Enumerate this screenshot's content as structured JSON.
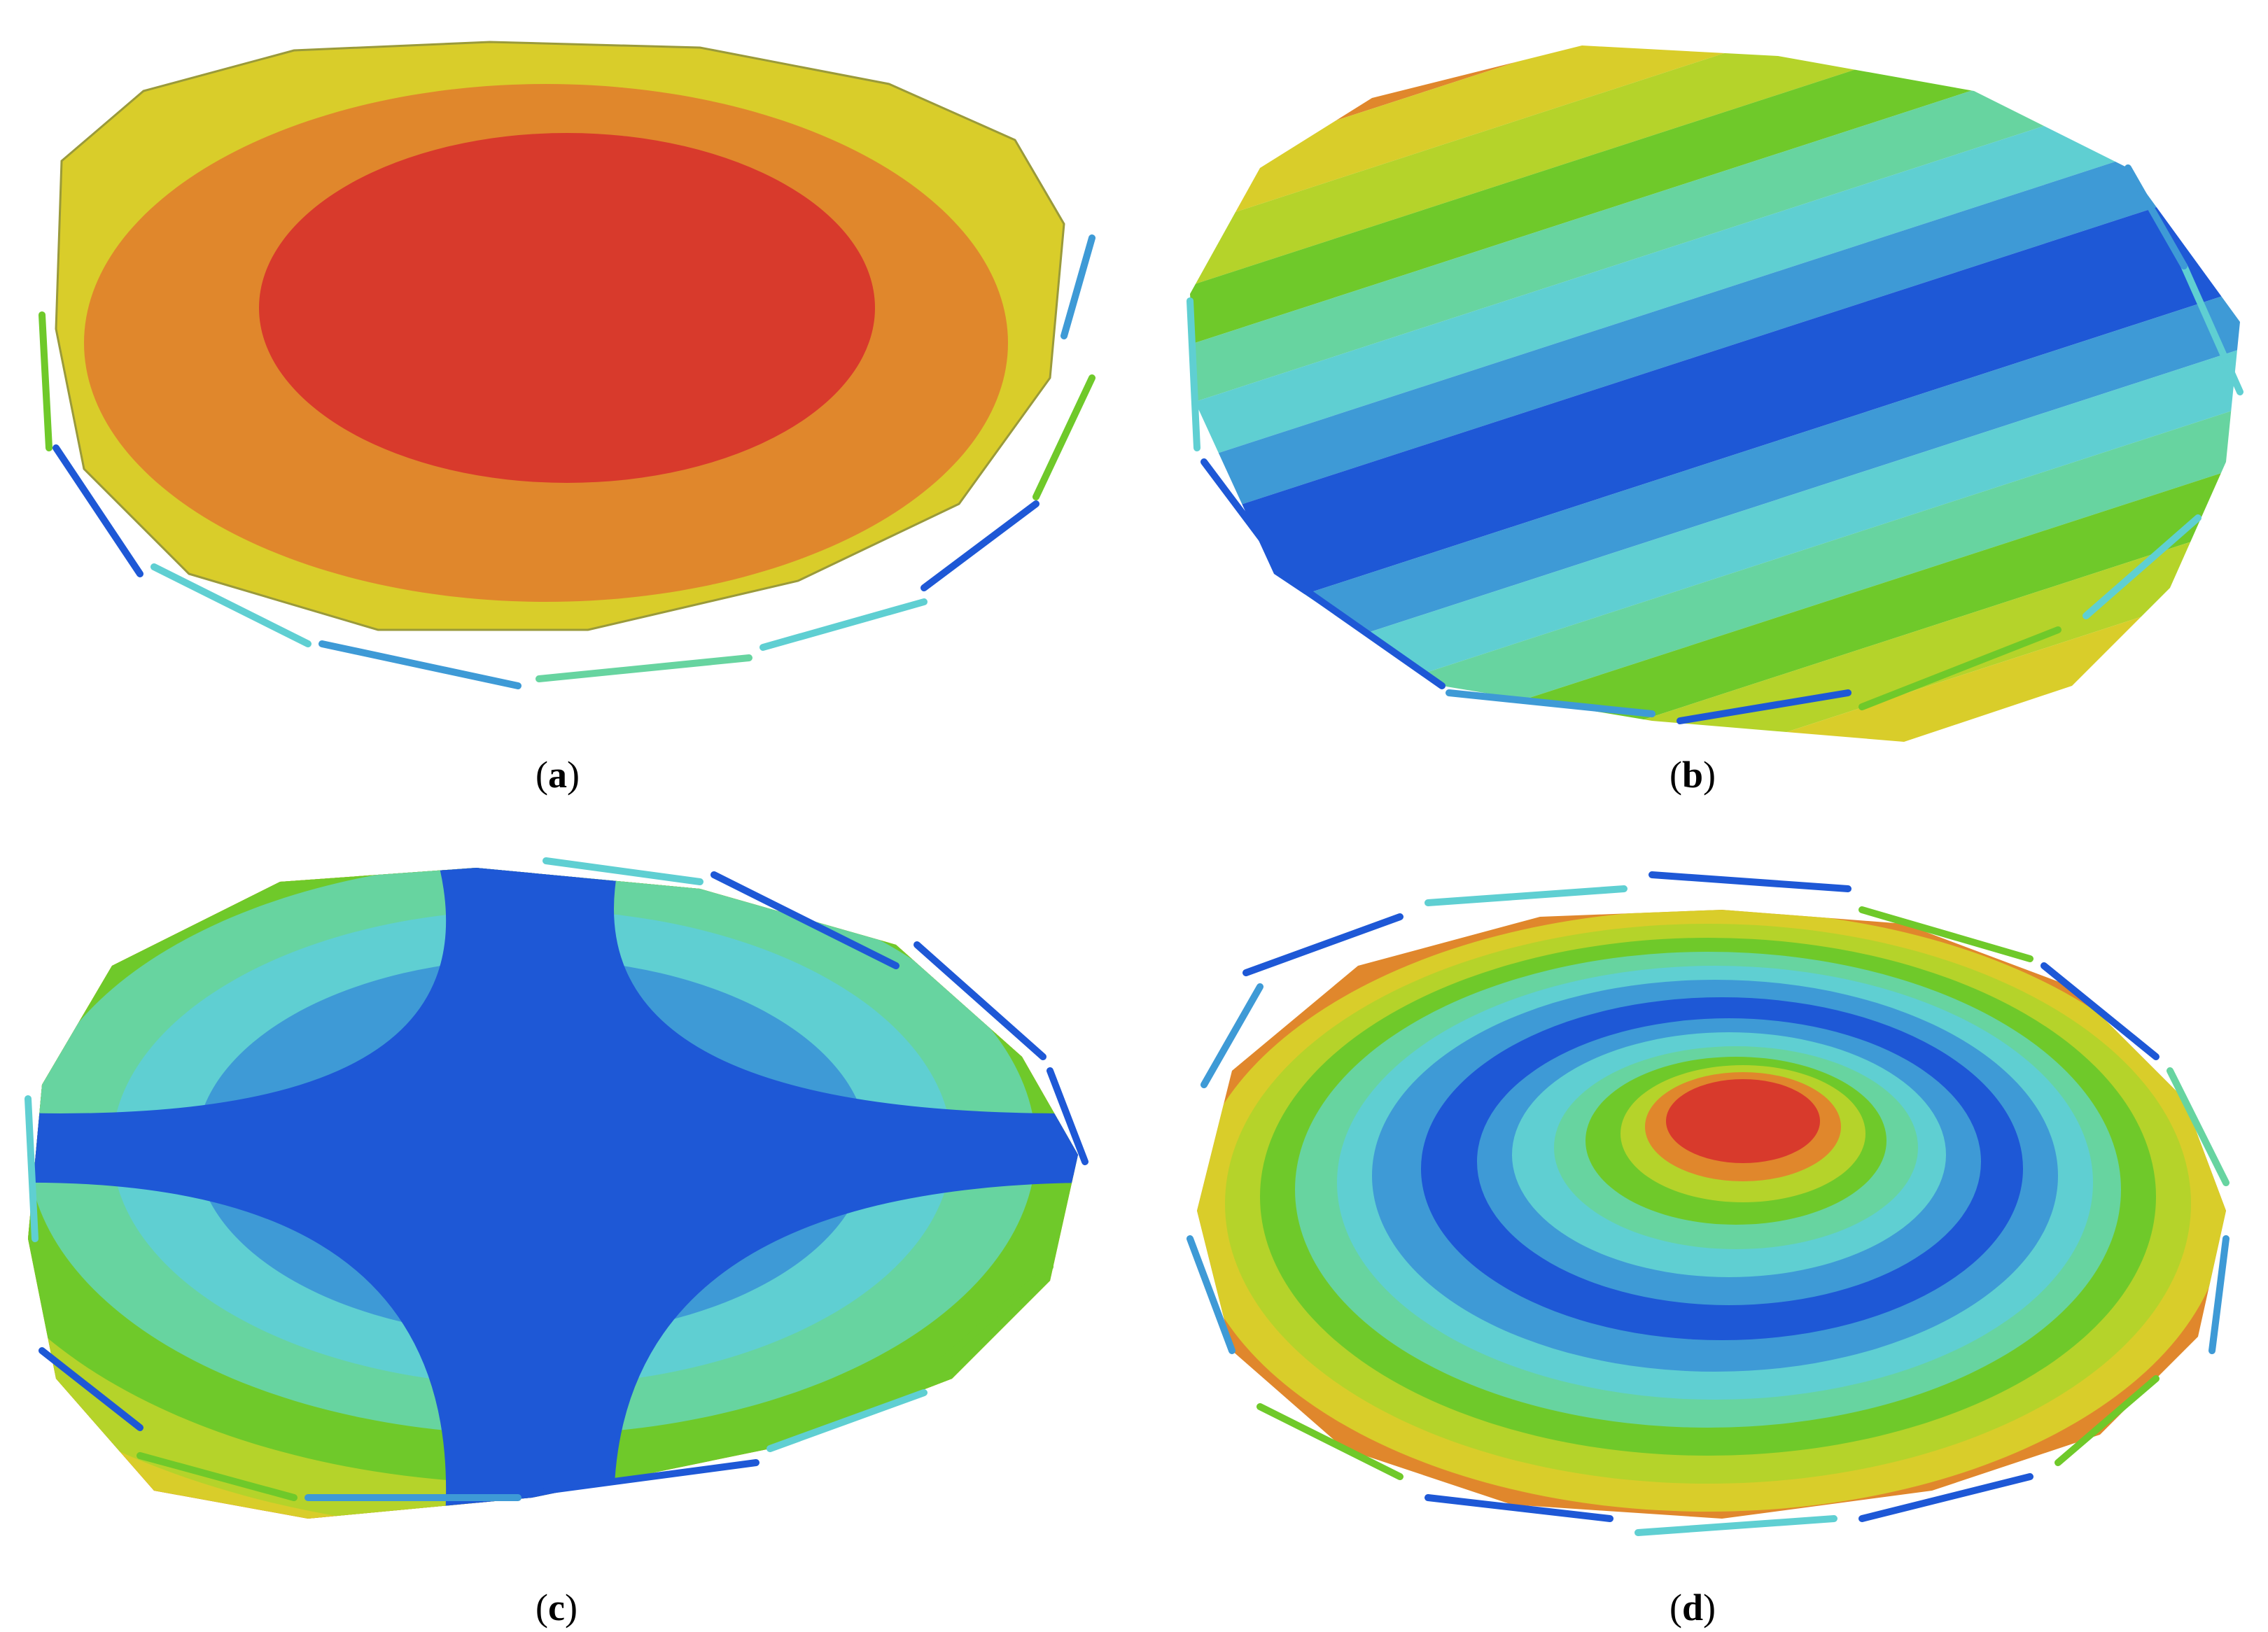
{
  "panels": [
    {
      "id": "a",
      "paren_open": "(",
      "letter": "a",
      "paren_close": ")"
    },
    {
      "id": "b",
      "paren_open": "(",
      "letter": "b",
      "paren_close": ")"
    },
    {
      "id": "c",
      "paren_open": "(",
      "letter": "c",
      "paren_close": ")"
    },
    {
      "id": "d",
      "paren_open": "(",
      "letter": "d",
      "paren_close": ")"
    }
  ],
  "colors": {
    "red": "#d83a2c",
    "orange": "#e0872c",
    "yellow": "#d9cd2a",
    "yellow_green": "#b5d32a",
    "green": "#6fc92a",
    "mint": "#67d4a0",
    "cyan": "#5fcfd2",
    "sky": "#3e9ad6",
    "blue": "#1e58d6"
  }
}
